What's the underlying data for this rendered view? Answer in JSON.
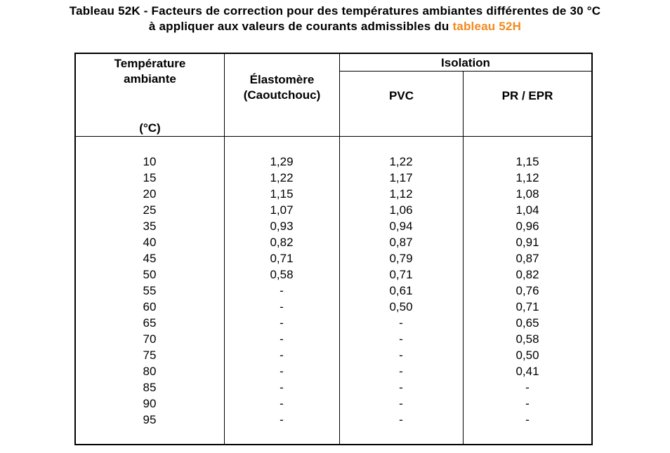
{
  "title": {
    "line1": "Tableau 52K - Facteurs de correction pour des températures ambiantes différentes de 30 °C",
    "line2_prefix": "à appliquer aux valeurs de courants admissibles du ",
    "line2_link": "tableau 52H",
    "link_color": "#f28a1d"
  },
  "table": {
    "header": {
      "temp_line1": "Température",
      "temp_line2": "ambiante",
      "temp_unit": "(°C)",
      "elastomer_line1": "Élastomère",
      "elastomer_line2": "(Caoutchouc)",
      "isolation": "Isolation",
      "pvc": "PVC",
      "pr_epr": "PR / EPR"
    },
    "columns": {
      "temperature": [
        "10",
        "15",
        "20",
        "25",
        "35",
        "40",
        "45",
        "50",
        "55",
        "60",
        "65",
        "70",
        "75",
        "80",
        "85",
        "90",
        "95"
      ],
      "elastomere": [
        "1,29",
        "1,22",
        "1,15",
        "1,07",
        "0,93",
        "0,82",
        "0,71",
        "0,58",
        "-",
        "-",
        "-",
        "-",
        "-",
        "-",
        "-",
        "-",
        "-"
      ],
      "pvc": [
        "1,22",
        "1,17",
        "1,12",
        "1,06",
        "0,94",
        "0,87",
        "0,79",
        "0,71",
        "0,61",
        "0,50",
        "-",
        "-",
        "-",
        "-",
        "-",
        "-",
        "-"
      ],
      "pr_epr": [
        "1,15",
        "1,12",
        "1,08",
        "1,04",
        "0,96",
        "0,91",
        "0,87",
        "0,82",
        "0,76",
        "0,71",
        "0,65",
        "0,58",
        "0,50",
        "0,41",
        "-",
        "-",
        "-"
      ]
    }
  }
}
